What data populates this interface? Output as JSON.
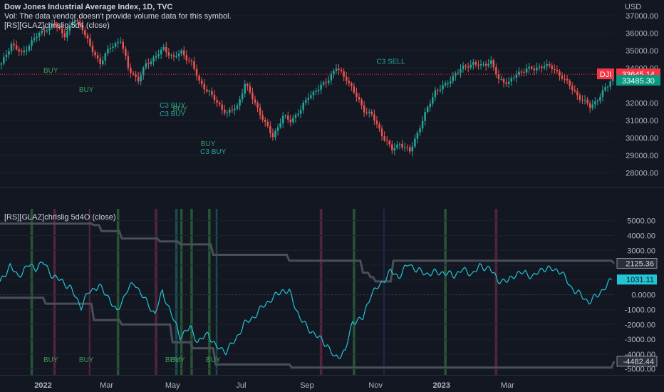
{
  "header": {
    "title": "Dow Jones Industrial Average Index, 1D, TVC",
    "vol_note": "Vol: The data vendor doesn't provide volume data for this symbol.",
    "indicator_label": "[RS][GLAZ]chrislig.5d4 (close)"
  },
  "oscillator_pane": {
    "title": "[RS][GLAZ]chrislig 5d4O (close)"
  },
  "colors": {
    "background": "#131722",
    "up": "#26a69a",
    "down": "#ef5350",
    "osc_line": "#22c5d6",
    "level_line": "#4a4e58",
    "text": "#d1d4dc",
    "axis_text": "#b2b5be",
    "buy_label": "#3d9a5f",
    "c3_label": "#26a69a",
    "band_green": "#2e6b3a",
    "band_red": "#6b2a45",
    "band_teal": "#1f5f63",
    "band_navy": "#2a2e5a",
    "current_price_bg": "#f23645",
    "last_price_bg": "#089981"
  },
  "chart_data": [
    {
      "type": "candlestick",
      "title": "Dow Jones Industrial Average Index, 1D, TVC",
      "axis_currency": "USD",
      "ylim": [
        27200,
        37900
      ],
      "y_ticks": [
        37000,
        36000,
        35000,
        34000,
        33000,
        32000,
        31000,
        30000,
        29000,
        28000
      ],
      "y_tick_labels": [
        "37000.00",
        "36000.00",
        "35000.00",
        "34000.00",
        "32000.00",
        "31000.00",
        "30000.00",
        "29000.00",
        "28000.00"
      ],
      "x_tick_labels": [
        "2022",
        "Mar",
        "May",
        "Jul",
        "Sep",
        "Nov",
        "2023",
        "Mar"
      ],
      "close_path": [
        {
          "t": 0,
          "v": 34200
        },
        {
          "t": 4,
          "v": 35400
        },
        {
          "t": 8,
          "v": 34800
        },
        {
          "t": 13,
          "v": 35700
        },
        {
          "t": 17,
          "v": 36200
        },
        {
          "t": 21,
          "v": 36500
        },
        {
          "t": 25,
          "v": 35900
        },
        {
          "t": 29,
          "v": 36800
        },
        {
          "t": 32,
          "v": 36300
        },
        {
          "t": 35,
          "v": 35200
        },
        {
          "t": 39,
          "v": 34300
        },
        {
          "t": 43,
          "v": 35200
        },
        {
          "t": 47,
          "v": 35600
        },
        {
          "t": 50,
          "v": 34000
        },
        {
          "t": 54,
          "v": 33300
        },
        {
          "t": 57,
          "v": 34200
        },
        {
          "t": 61,
          "v": 34700
        },
        {
          "t": 64,
          "v": 35100
        },
        {
          "t": 68,
          "v": 34600
        },
        {
          "t": 71,
          "v": 34900
        },
        {
          "t": 75,
          "v": 34300
        },
        {
          "t": 78,
          "v": 33200
        },
        {
          "t": 82,
          "v": 32600
        },
        {
          "t": 85,
          "v": 32000
        },
        {
          "t": 89,
          "v": 31400
        },
        {
          "t": 93,
          "v": 31800
        },
        {
          "t": 96,
          "v": 33100
        },
        {
          "t": 100,
          "v": 32000
        },
        {
          "t": 104,
          "v": 30800
        },
        {
          "t": 107,
          "v": 30100
        },
        {
          "t": 111,
          "v": 31200
        },
        {
          "t": 114,
          "v": 31000
        },
        {
          "t": 118,
          "v": 31600
        },
        {
          "t": 121,
          "v": 32400
        },
        {
          "t": 125,
          "v": 32800
        },
        {
          "t": 129,
          "v": 33400
        },
        {
          "t": 132,
          "v": 34000
        },
        {
          "t": 136,
          "v": 33400
        },
        {
          "t": 139,
          "v": 32600
        },
        {
          "t": 143,
          "v": 31600
        },
        {
          "t": 146,
          "v": 31300
        },
        {
          "t": 150,
          "v": 30200
        },
        {
          "t": 154,
          "v": 29300
        },
        {
          "t": 157,
          "v": 29700
        },
        {
          "t": 161,
          "v": 29200
        },
        {
          "t": 164,
          "v": 30300
        },
        {
          "t": 168,
          "v": 31700
        },
        {
          "t": 171,
          "v": 32700
        },
        {
          "t": 175,
          "v": 33000
        },
        {
          "t": 179,
          "v": 33700
        },
        {
          "t": 182,
          "v": 34000
        },
        {
          "t": 186,
          "v": 34300
        },
        {
          "t": 189,
          "v": 34100
        },
        {
          "t": 193,
          "v": 34400
        },
        {
          "t": 196,
          "v": 33300
        },
        {
          "t": 200,
          "v": 33200
        },
        {
          "t": 203,
          "v": 33600
        },
        {
          "t": 207,
          "v": 34000
        },
        {
          "t": 210,
          "v": 33900
        },
        {
          "t": 214,
          "v": 34200
        },
        {
          "t": 218,
          "v": 33900
        },
        {
          "t": 221,
          "v": 33500
        },
        {
          "t": 225,
          "v": 32800
        },
        {
          "t": 228,
          "v": 32300
        },
        {
          "t": 232,
          "v": 31800
        },
        {
          "t": 235,
          "v": 32200
        },
        {
          "t": 239,
          "v": 33000
        },
        {
          "t": 241,
          "v": 33645
        }
      ],
      "current_price_tag": {
        "symbol": "DJI",
        "price": "33645.14"
      },
      "last_price_tag": "33485.30",
      "signals": [
        {
          "t": 20,
          "v": 33900,
          "label": "BUY",
          "kind": "buy"
        },
        {
          "t": 34,
          "v": 32800,
          "label": "BUY",
          "kind": "buy"
        },
        {
          "t": 68,
          "v": 31900,
          "label": "C3 BUY",
          "kind": "c3"
        },
        {
          "t": 68,
          "v": 31400,
          "label": "C3 BUY",
          "kind": "c3"
        },
        {
          "t": 71,
          "v": 31700,
          "label": "BUY",
          "kind": "buy"
        },
        {
          "t": 82,
          "v": 29700,
          "label": "BUY",
          "kind": "buy"
        },
        {
          "t": 84,
          "v": 29250,
          "label": "C3 BUY",
          "kind": "c3"
        },
        {
          "t": 154,
          "v": 34400,
          "label": "C3 SELL",
          "kind": "c3"
        }
      ]
    },
    {
      "type": "line",
      "title": "[RS][GLAZ]chrislig 5d4O (close)",
      "ylim": [
        -5400,
        5800
      ],
      "y_ticks": [
        5000,
        4000,
        3000,
        2000,
        1000,
        0,
        -1000,
        -2000,
        -3000,
        -4000,
        -5000
      ],
      "y_tick_labels": [
        "5000.00",
        "4000.00",
        "3000.00",
        "2000.00",
        "0.0000",
        "-1000.00",
        "-2000.00",
        "-3000.00",
        "-4000.00",
        "-5000.00"
      ],
      "series": [
        {
          "values_path": [
            {
              "t": 0,
              "v": 800
            },
            {
              "t": 4,
              "v": 2000
            },
            {
              "t": 7,
              "v": 1200
            },
            {
              "t": 11,
              "v": 2000
            },
            {
              "t": 14,
              "v": 1800
            },
            {
              "t": 17,
              "v": 2200
            },
            {
              "t": 21,
              "v": 1200
            },
            {
              "t": 24,
              "v": 1000
            },
            {
              "t": 28,
              "v": 400
            },
            {
              "t": 32,
              "v": -800
            },
            {
              "t": 35,
              "v": 200
            },
            {
              "t": 39,
              "v": 600
            },
            {
              "t": 43,
              "v": -200
            },
            {
              "t": 46,
              "v": -1200
            },
            {
              "t": 50,
              "v": 300
            },
            {
              "t": 53,
              "v": 800
            },
            {
              "t": 57,
              "v": -300
            },
            {
              "t": 61,
              "v": -1300
            },
            {
              "t": 64,
              "v": 200
            },
            {
              "t": 68,
              "v": -1500
            },
            {
              "t": 71,
              "v": -2800
            },
            {
              "t": 75,
              "v": -2200
            },
            {
              "t": 78,
              "v": -3200
            },
            {
              "t": 82,
              "v": -2600
            },
            {
              "t": 85,
              "v": -3500
            },
            {
              "t": 89,
              "v": -3800
            },
            {
              "t": 93,
              "v": -3000
            },
            {
              "t": 96,
              "v": -2000
            },
            {
              "t": 100,
              "v": -1500
            },
            {
              "t": 104,
              "v": -700
            },
            {
              "t": 107,
              "v": -300
            },
            {
              "t": 111,
              "v": 300
            },
            {
              "t": 114,
              "v": 200
            },
            {
              "t": 118,
              "v": -1500
            },
            {
              "t": 121,
              "v": -2200
            },
            {
              "t": 125,
              "v": -2800
            },
            {
              "t": 129,
              "v": -3400
            },
            {
              "t": 132,
              "v": -4300
            },
            {
              "t": 136,
              "v": -3800
            },
            {
              "t": 139,
              "v": -1800
            },
            {
              "t": 143,
              "v": -1600
            },
            {
              "t": 146,
              "v": 0
            },
            {
              "t": 150,
              "v": 700
            },
            {
              "t": 154,
              "v": 1600
            },
            {
              "t": 157,
              "v": 1200
            },
            {
              "t": 161,
              "v": 2100
            },
            {
              "t": 164,
              "v": 1700
            },
            {
              "t": 168,
              "v": 1400
            },
            {
              "t": 171,
              "v": 1500
            },
            {
              "t": 175,
              "v": 1500
            },
            {
              "t": 179,
              "v": 1300
            },
            {
              "t": 182,
              "v": 1700
            },
            {
              "t": 186,
              "v": 1400
            },
            {
              "t": 189,
              "v": 1900
            },
            {
              "t": 193,
              "v": 1800
            },
            {
              "t": 196,
              "v": 1000
            },
            {
              "t": 200,
              "v": 900
            },
            {
              "t": 203,
              "v": 1400
            },
            {
              "t": 207,
              "v": 1500
            },
            {
              "t": 210,
              "v": 1200
            },
            {
              "t": 214,
              "v": 1800
            },
            {
              "t": 218,
              "v": 1700
            },
            {
              "t": 221,
              "v": 1600
            },
            {
              "t": 225,
              "v": 500
            },
            {
              "t": 228,
              "v": 100
            },
            {
              "t": 232,
              "v": -500
            },
            {
              "t": 235,
              "v": -100
            },
            {
              "t": 239,
              "v": 600
            },
            {
              "t": 241,
              "v": 1031
            }
          ]
        }
      ],
      "levels": [
        {
          "name": "upper",
          "steps": [
            [
              0,
              4800
            ],
            [
              37,
              4700
            ],
            [
              40,
              4300
            ],
            [
              48,
              3800
            ],
            [
              63,
              3600
            ],
            [
              71,
              3400
            ],
            [
              84,
              2700
            ],
            [
              114,
              2300
            ],
            [
              143,
              1500
            ],
            [
              146,
              1200
            ],
            [
              148,
              900
            ],
            [
              155,
              2300
            ],
            [
              242,
              2125
            ]
          ]
        },
        {
          "name": "lower",
          "steps": [
            [
              0,
              -200
            ],
            [
              18,
              -600
            ],
            [
              37,
              -1700
            ],
            [
              48,
              -2000
            ],
            [
              68,
              -3200
            ],
            [
              76,
              -3600
            ],
            [
              85,
              -4700
            ],
            [
              115,
              -4900
            ],
            [
              242,
              -4482
            ]
          ]
        }
      ],
      "value_tags": [
        "2125.36",
        "1031.11",
        "-4482.44"
      ],
      "signals": [
        {
          "t": 20,
          "label": "BUY"
        },
        {
          "t": 34,
          "label": "BUY"
        },
        {
          "t": 68,
          "label": "BUY"
        },
        {
          "t": 70,
          "label": "BUY"
        },
        {
          "t": 84,
          "label": "BUY"
        }
      ],
      "bands": [
        {
          "t0": 12,
          "t1": 13,
          "color": "band_green"
        },
        {
          "t0": 21,
          "t1": 22,
          "color": "band_red"
        },
        {
          "t0": 35,
          "t1": 35.6,
          "color": "band_red"
        },
        {
          "t0": 46,
          "t1": 47,
          "color": "band_green"
        },
        {
          "t0": 61,
          "t1": 62,
          "color": "band_red"
        },
        {
          "t0": 69,
          "t1": 70,
          "color": "band_teal"
        },
        {
          "t0": 71,
          "t1": 72,
          "color": "band_green"
        },
        {
          "t0": 75,
          "t1": 76,
          "color": "band_green"
        },
        {
          "t0": 82,
          "t1": 83,
          "color": "band_green"
        },
        {
          "t0": 85,
          "t1": 85.7,
          "color": "band_teal"
        },
        {
          "t0": 126,
          "t1": 127,
          "color": "band_red"
        },
        {
          "t0": 139,
          "t1": 140,
          "color": "band_green"
        },
        {
          "t0": 151,
          "t1": 151.6,
          "color": "band_navy"
        },
        {
          "t0": 175,
          "t1": 176,
          "color": "band_green"
        },
        {
          "t0": 195,
          "t1": 196,
          "color": "band_red"
        }
      ]
    }
  ]
}
